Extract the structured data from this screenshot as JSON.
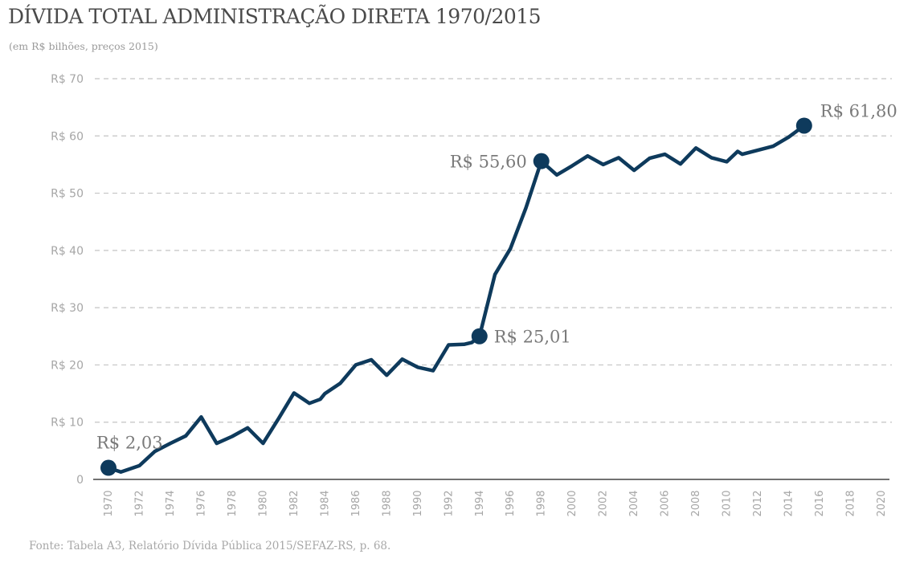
{
  "title": "DÍVIDA TOTAL ADMINISTRAÇÃO DIRETA 1970/2015",
  "subtitle": "(em R$ bilhões, preços 2015)",
  "source": "Fonte: Tabela A3, Relatório Dívida Pública 2015/SEFAZ-RS, p. 68.",
  "colors": {
    "line": "#0e3a5c",
    "grid": "#c4c4c4",
    "axis": "#444444"
  },
  "chart_data": {
    "type": "line",
    "title": "DÍVIDA TOTAL ADMINISTRAÇÃO DIRETA 1970/2015",
    "subtitle": "(em R$ bilhões, preços 2015)",
    "xlabel": "",
    "ylabel": "",
    "xlim": [
      1970,
      2020
    ],
    "ylim": [
      0,
      70
    ],
    "grid": true,
    "y_ticks": [
      {
        "value": 0,
        "label": "0"
      },
      {
        "value": 10,
        "label": "R$ 10"
      },
      {
        "value": 20,
        "label": "R$ 20"
      },
      {
        "value": 30,
        "label": "R$ 30"
      },
      {
        "value": 40,
        "label": "R$ 40"
      },
      {
        "value": 50,
        "label": "R$ 50"
      },
      {
        "value": 60,
        "label": "R$ 60"
      },
      {
        "value": 70,
        "label": "R$ 70"
      }
    ],
    "x_ticks": [
      "1970",
      "1972",
      "1974",
      "1976",
      "1978",
      "1980",
      "1982",
      "1984",
      "1986",
      "1988",
      "1990",
      "1992",
      "1994",
      "1996",
      "1998",
      "2000",
      "2002",
      "2004",
      "2006",
      "2008",
      "2010",
      "2012",
      "2014",
      "2016",
      "2018",
      "2020"
    ],
    "series": [
      {
        "name": "Dívida total",
        "x": [
          1970,
          1970.8,
          1972,
          1973,
          1974,
          1975,
          1976,
          1977,
          1978,
          1979,
          1980,
          1981,
          1982,
          1983,
          1983.7,
          1984,
          1985,
          1986,
          1987,
          1988,
          1989,
          1990,
          1991,
          1992,
          1993,
          1993.5,
          1994,
          1995,
          1996,
          1997,
          1998,
          1999,
          2000,
          2001,
          2002,
          2003,
          2004,
          2005,
          2006,
          2007,
          2008,
          2009,
          2010,
          2010.7,
          2011,
          2012,
          2013,
          2014,
          2015
        ],
        "values": [
          2.03,
          1.3,
          2.4,
          4.9,
          6.3,
          7.6,
          10.9,
          6.3,
          7.5,
          9.0,
          6.3,
          10.6,
          15.1,
          13.3,
          14.0,
          15.0,
          16.8,
          20.0,
          20.9,
          18.2,
          21.0,
          19.6,
          19.0,
          23.5,
          23.6,
          23.9,
          25.01,
          35.8,
          40.3,
          47.4,
          55.6,
          53.2,
          54.8,
          56.5,
          55.0,
          56.2,
          54.0,
          56.1,
          56.8,
          55.1,
          57.9,
          56.2,
          55.5,
          57.3,
          56.8,
          57.5,
          58.2,
          59.8,
          61.8
        ]
      }
    ],
    "annotations": [
      {
        "x": 1970,
        "y": 2.03,
        "label": "R$ 2,03"
      },
      {
        "x": 1994,
        "y": 25.01,
        "label": "R$ 25,01"
      },
      {
        "x": 1998,
        "y": 55.6,
        "label": "R$ 55,60"
      },
      {
        "x": 2015,
        "y": 61.8,
        "label": "R$ 61,80"
      }
    ]
  }
}
